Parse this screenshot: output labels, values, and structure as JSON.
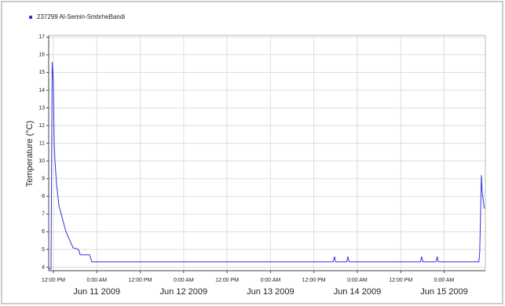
{
  "chart_data": {
    "type": "line",
    "y_label": "Temperature (°C)",
    "series": [
      {
        "name": "237299 Al-Semin-SmbrheBandi",
        "color": "#3333dd",
        "x": [
          "2009-06-10T10:42",
          "2009-06-10T11:21",
          "2009-06-10T11:40",
          "2009-06-10T12:00",
          "2009-06-10T12:13",
          "2009-06-10T12:26",
          "2009-06-10T12:52",
          "2009-06-10T13:31",
          "2009-06-10T14:10",
          "2009-06-10T14:49",
          "2009-06-10T15:28",
          "2009-06-10T16:08",
          "2009-06-10T16:47",
          "2009-06-10T17:26",
          "2009-06-10T18:57",
          "2009-06-10T19:23",
          "2009-06-10T22:00",
          "2009-06-10T22:38",
          "2009-06-13T17:20",
          "2009-06-13T17:42",
          "2009-06-13T18:00",
          "2009-06-13T21:05",
          "2009-06-13T21:24",
          "2009-06-13T21:42",
          "2009-06-14T17:28",
          "2009-06-14T17:48",
          "2009-06-14T18:06",
          "2009-06-14T21:46",
          "2009-06-14T22:06",
          "2009-06-14T22:24",
          "2009-06-15T09:36",
          "2009-06-15T09:50",
          "2009-06-15T10:18",
          "2009-06-15T10:30",
          "2009-06-15T11:06"
        ],
        "values": [
          3.9,
          3.9,
          15.6,
          14.5,
          11,
          10,
          8.7,
          7.5,
          7,
          6.5,
          6,
          5.7,
          5.4,
          5.1,
          5.0,
          4.7,
          4.7,
          4.3,
          4.3,
          4.6,
          4.3,
          4.3,
          4.6,
          4.3,
          4.3,
          4.6,
          4.3,
          4.3,
          4.6,
          4.3,
          4.3,
          4.8,
          9.2,
          8.3,
          7.3
        ]
      }
    ],
    "xlim": [
      "2009-06-10T10:42",
      "2009-06-15T11:24"
    ],
    "xticks": [
      {
        "value": "2009-06-10T12:00",
        "label": "12:00 PM"
      },
      {
        "value": "2009-06-11T00:00",
        "label": "0:00 AM"
      },
      {
        "value": "2009-06-11T12:00",
        "label": "12:00 PM"
      },
      {
        "value": "2009-06-12T00:00",
        "label": "0:00 AM"
      },
      {
        "value": "2009-06-12T12:00",
        "label": "12:00 PM"
      },
      {
        "value": "2009-06-13T00:00",
        "label": "0:00 AM"
      },
      {
        "value": "2009-06-13T12:00",
        "label": "12:00 PM"
      },
      {
        "value": "2009-06-14T00:00",
        "label": "0:00 AM"
      },
      {
        "value": "2009-06-14T12:00",
        "label": "12:00 PM"
      },
      {
        "value": "2009-06-15T00:00",
        "label": "0:00 AM"
      }
    ],
    "xday_labels": [
      {
        "value": "2009-06-11T00:00",
        "label": "Jun 11 2009"
      },
      {
        "value": "2009-06-12T00:00",
        "label": "Jun 12 2009"
      },
      {
        "value": "2009-06-13T00:00",
        "label": "Jun 13 2009"
      },
      {
        "value": "2009-06-14T00:00",
        "label": "Jun 14 2009"
      },
      {
        "value": "2009-06-15T00:00",
        "label": "Jun 15 2009"
      }
    ],
    "ylim": [
      3.8,
      17.1
    ],
    "yticks": [
      4,
      5,
      6,
      7,
      8,
      9,
      10,
      11,
      12,
      13,
      14,
      15,
      16,
      17
    ],
    "grid": true
  }
}
